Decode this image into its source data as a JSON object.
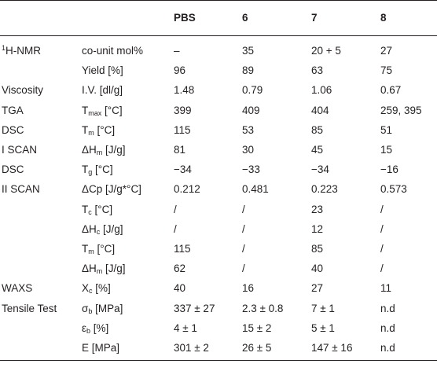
{
  "table": {
    "headers": [
      "",
      "",
      "PBS",
      "6",
      "7",
      "8"
    ],
    "rows": [
      {
        "group": {
          "sup": "1",
          "text": "H-NMR"
        },
        "param": {
          "text": "co-unit mol%"
        },
        "values": [
          "–",
          "35",
          "20 + 5",
          "27"
        ]
      },
      {
        "group": null,
        "param": {
          "text": "Yield [%]"
        },
        "values": [
          "96",
          "89",
          "63",
          "75"
        ]
      },
      {
        "group": {
          "text": "Viscosity"
        },
        "param": {
          "text": "I.V. [dl/g]"
        },
        "values": [
          "1.48",
          "0.79",
          "1.06",
          "0.67"
        ]
      },
      {
        "group": {
          "text": "TGA"
        },
        "param": {
          "text": "T",
          "sub": "max",
          "rest": " [°C]"
        },
        "values": [
          "399",
          "409",
          "404",
          "259, 395"
        ]
      },
      {
        "group": {
          "text": "DSC"
        },
        "param": {
          "text": "T",
          "sub": "m",
          "rest": " [°C]"
        },
        "values": [
          "115",
          "53",
          "85",
          "51"
        ]
      },
      {
        "group": {
          "text": "I SCAN"
        },
        "param": {
          "text": "ΔH",
          "sub": "m",
          "rest": " [J/g]"
        },
        "values": [
          "81",
          "30",
          "45",
          "15"
        ]
      },
      {
        "group": {
          "text": "DSC"
        },
        "param": {
          "text": "T",
          "sub": "g",
          "rest": " [°C]"
        },
        "values": [
          "−34",
          "−33",
          "−34",
          "−16"
        ]
      },
      {
        "group": {
          "text": "II SCAN"
        },
        "param": {
          "text": "ΔCp [J/g*°C]"
        },
        "values": [
          "0.212",
          "0.481",
          "0.223",
          "0.573"
        ]
      },
      {
        "group": null,
        "param": {
          "text": "T",
          "sub": "c",
          "rest": " [°C]"
        },
        "values": [
          "/",
          "/",
          "23",
          "/"
        ]
      },
      {
        "group": null,
        "param": {
          "text": "ΔH",
          "sub": "c",
          "rest": " [J/g]"
        },
        "values": [
          "/",
          "/",
          "12",
          "/"
        ]
      },
      {
        "group": null,
        "param": {
          "text": "T",
          "sub": "m",
          "rest": " [°C]"
        },
        "values": [
          "115",
          "/",
          "85",
          "/"
        ]
      },
      {
        "group": null,
        "param": {
          "text": "ΔH",
          "sub": "m",
          "rest": " [J/g]"
        },
        "values": [
          "62",
          "/",
          "40",
          "/"
        ]
      },
      {
        "group": {
          "text": "WAXS"
        },
        "param": {
          "text": "X",
          "sub": "c",
          "rest": " [%]"
        },
        "values": [
          "40",
          "16",
          "27",
          "11"
        ]
      },
      {
        "group": {
          "text": "Tensile Test"
        },
        "param": {
          "text": "σ",
          "sub": "b",
          "rest": " [MPa]"
        },
        "values": [
          "337 ± 27",
          "2.3 ± 0.8",
          "7 ± 1",
          "n.d"
        ]
      },
      {
        "group": null,
        "param": {
          "text": "ε",
          "sub": "b",
          "rest": " [%]"
        },
        "values": [
          "4 ± 1",
          "15 ± 2",
          "5 ± 1",
          "n.d"
        ]
      },
      {
        "group": null,
        "param": {
          "text": "E [MPa]"
        },
        "values": [
          "301 ± 2",
          "26 ± 5",
          "147 ± 16",
          "n.d"
        ]
      }
    ]
  }
}
